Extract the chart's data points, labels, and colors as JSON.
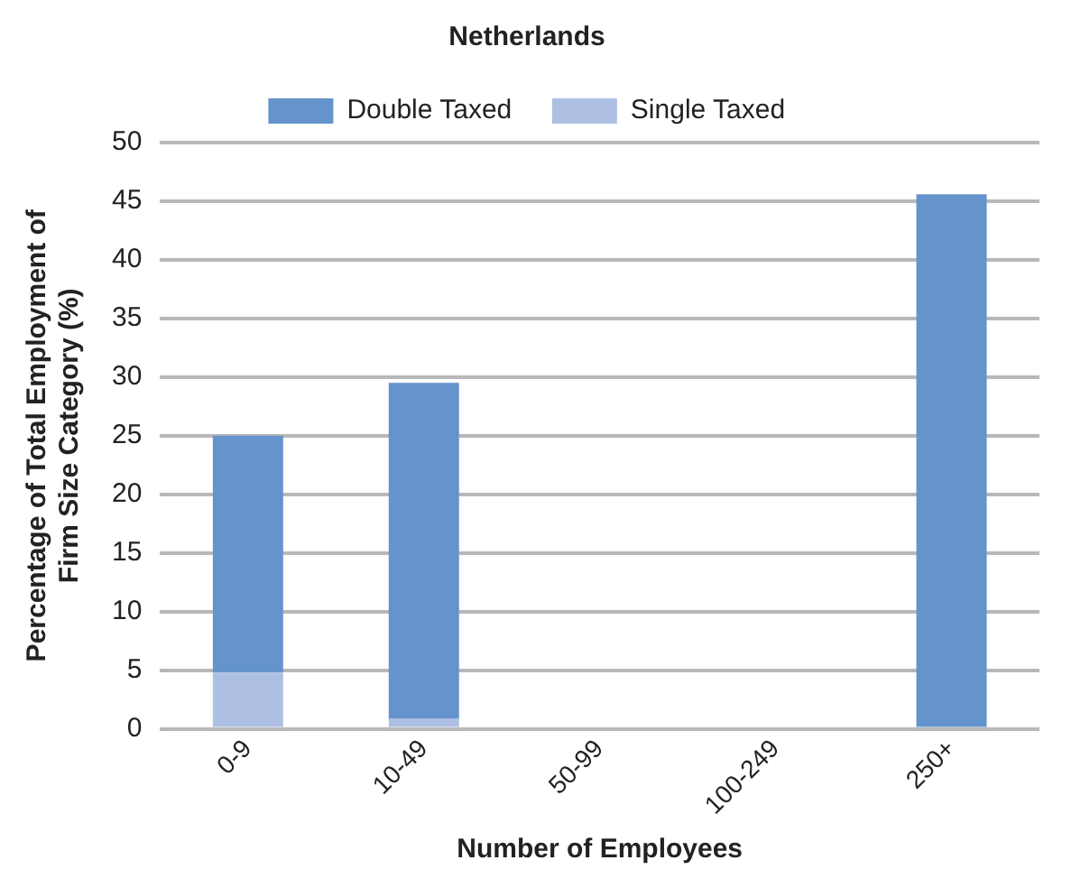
{
  "chart_data": {
    "type": "bar",
    "title": "Netherlands",
    "xlabel": "Number of Employees",
    "ylabel": "Percentage of Total Employment of Firm Size Category (%)",
    "categories": [
      "0-9",
      "10-49",
      "50-99",
      "100-249",
      "250+"
    ],
    "stacked": true,
    "series": [
      {
        "name": "Single Taxed",
        "color": "#adbfe2",
        "values": [
          4.8,
          0.9,
          0,
          0,
          0
        ]
      },
      {
        "name": "Double Taxed",
        "color": "#6593cb",
        "values": [
          20.2,
          28.6,
          0,
          0,
          45.6
        ]
      }
    ],
    "ylim": [
      0,
      50
    ],
    "yticks": [
      0,
      5,
      10,
      15,
      20,
      25,
      30,
      35,
      40,
      45,
      50
    ],
    "grid": "y",
    "legend": "top"
  }
}
